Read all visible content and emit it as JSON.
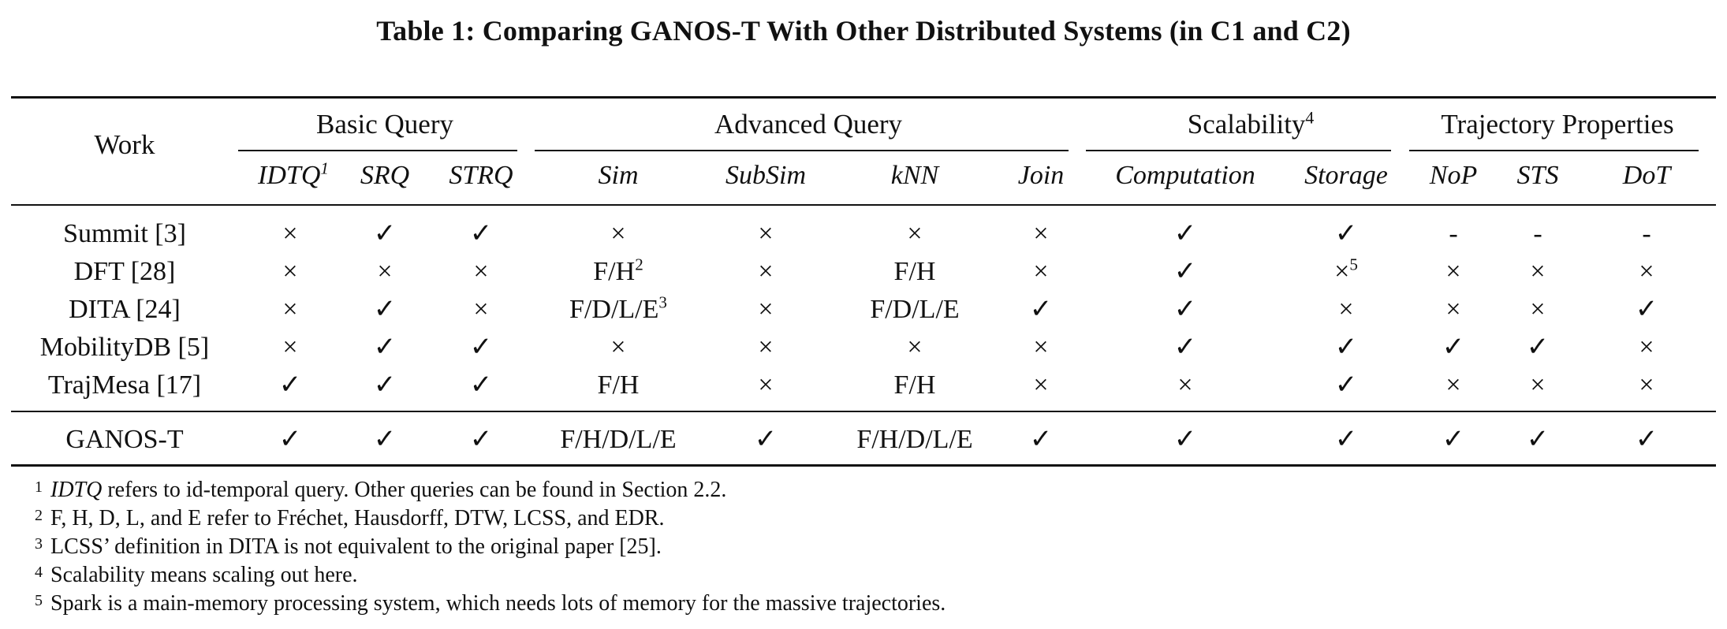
{
  "caption": "Table 1: Comparing GANOS-T With Other Distributed Systems (in C1 and C2)",
  "header": {
    "work": "Work",
    "groups": {
      "basic": "Basic Query",
      "advanced": "Advanced Query",
      "scalability": "Scalability",
      "scalability_sup": "4",
      "trajectory": "Trajectory Properties"
    },
    "sub": {
      "idtq": "IDTQ",
      "idtq_sup": "1",
      "srq": "SRQ",
      "strq": "STRQ",
      "sim": "Sim",
      "subsim": "SubSim",
      "knn": "kNN",
      "join": "Join",
      "computation": "Computation",
      "storage": "Storage",
      "nop": "NoP",
      "sts": "STS",
      "dot": "DoT"
    }
  },
  "rows": [
    {
      "work": "Summit [3]",
      "idtq": "×",
      "srq": "✓",
      "strq": "✓",
      "sim": "×",
      "sim_sup": "",
      "subsim": "×",
      "knn": "×",
      "join": "×",
      "computation": "✓",
      "storage": "✓",
      "storage_sup": "",
      "nop": "-",
      "sts": "-",
      "dot": "-"
    },
    {
      "work": "DFT [28]",
      "idtq": "×",
      "srq": "×",
      "strq": "×",
      "sim": "F/H",
      "sim_sup": "2",
      "subsim": "×",
      "knn": "F/H",
      "join": "×",
      "computation": "✓",
      "storage": "×",
      "storage_sup": "5",
      "nop": "×",
      "sts": "×",
      "dot": "×"
    },
    {
      "work": "DITA [24]",
      "idtq": "×",
      "srq": "✓",
      "strq": "×",
      "sim": "F/D/L/E",
      "sim_sup": "3",
      "subsim": "×",
      "knn": "F/D/L/E",
      "join": "✓",
      "computation": "✓",
      "storage": "×",
      "storage_sup": "",
      "nop": "×",
      "sts": "×",
      "dot": "✓"
    },
    {
      "work": "MobilityDB [5]",
      "idtq": "×",
      "srq": "✓",
      "strq": "✓",
      "sim": "×",
      "sim_sup": "",
      "subsim": "×",
      "knn": "×",
      "join": "×",
      "computation": "✓",
      "storage": "✓",
      "storage_sup": "",
      "nop": "✓",
      "sts": "✓",
      "dot": "×"
    },
    {
      "work": "TrajMesa [17]",
      "idtq": "✓",
      "srq": "✓",
      "strq": "✓",
      "sim": "F/H",
      "sim_sup": "",
      "subsim": "×",
      "knn": "F/H",
      "join": "×",
      "computation": "×",
      "storage": "✓",
      "storage_sup": "",
      "nop": "×",
      "sts": "×",
      "dot": "×"
    },
    {
      "work": "GANOS-T",
      "idtq": "✓",
      "srq": "✓",
      "strq": "✓",
      "sim": "F/H/D/L/E",
      "sim_sup": "",
      "subsim": "✓",
      "knn": "F/H/D/L/E",
      "join": "✓",
      "computation": "✓",
      "storage": "✓",
      "storage_sup": "",
      "nop": "✓",
      "sts": "✓",
      "dot": "✓"
    }
  ],
  "footnotes": [
    {
      "num": "1",
      "lead": "IDTQ",
      "text": " refers to id-temporal query. Other queries can be found in Section 2.2."
    },
    {
      "num": "2",
      "lead": "",
      "text": "F, H, D, L, and E refer to Fréchet, Hausdorff, DTW, LCSS, and EDR."
    },
    {
      "num": "3",
      "lead": "",
      "text": "LCSS’ definition in DITA is not equivalent to the original paper [25]."
    },
    {
      "num": "4",
      "lead": "",
      "text": "Scalability means scaling out here."
    },
    {
      "num": "5",
      "lead": "",
      "text": "Spark is a main-memory processing system, which needs lots of memory for the massive trajectories."
    }
  ]
}
